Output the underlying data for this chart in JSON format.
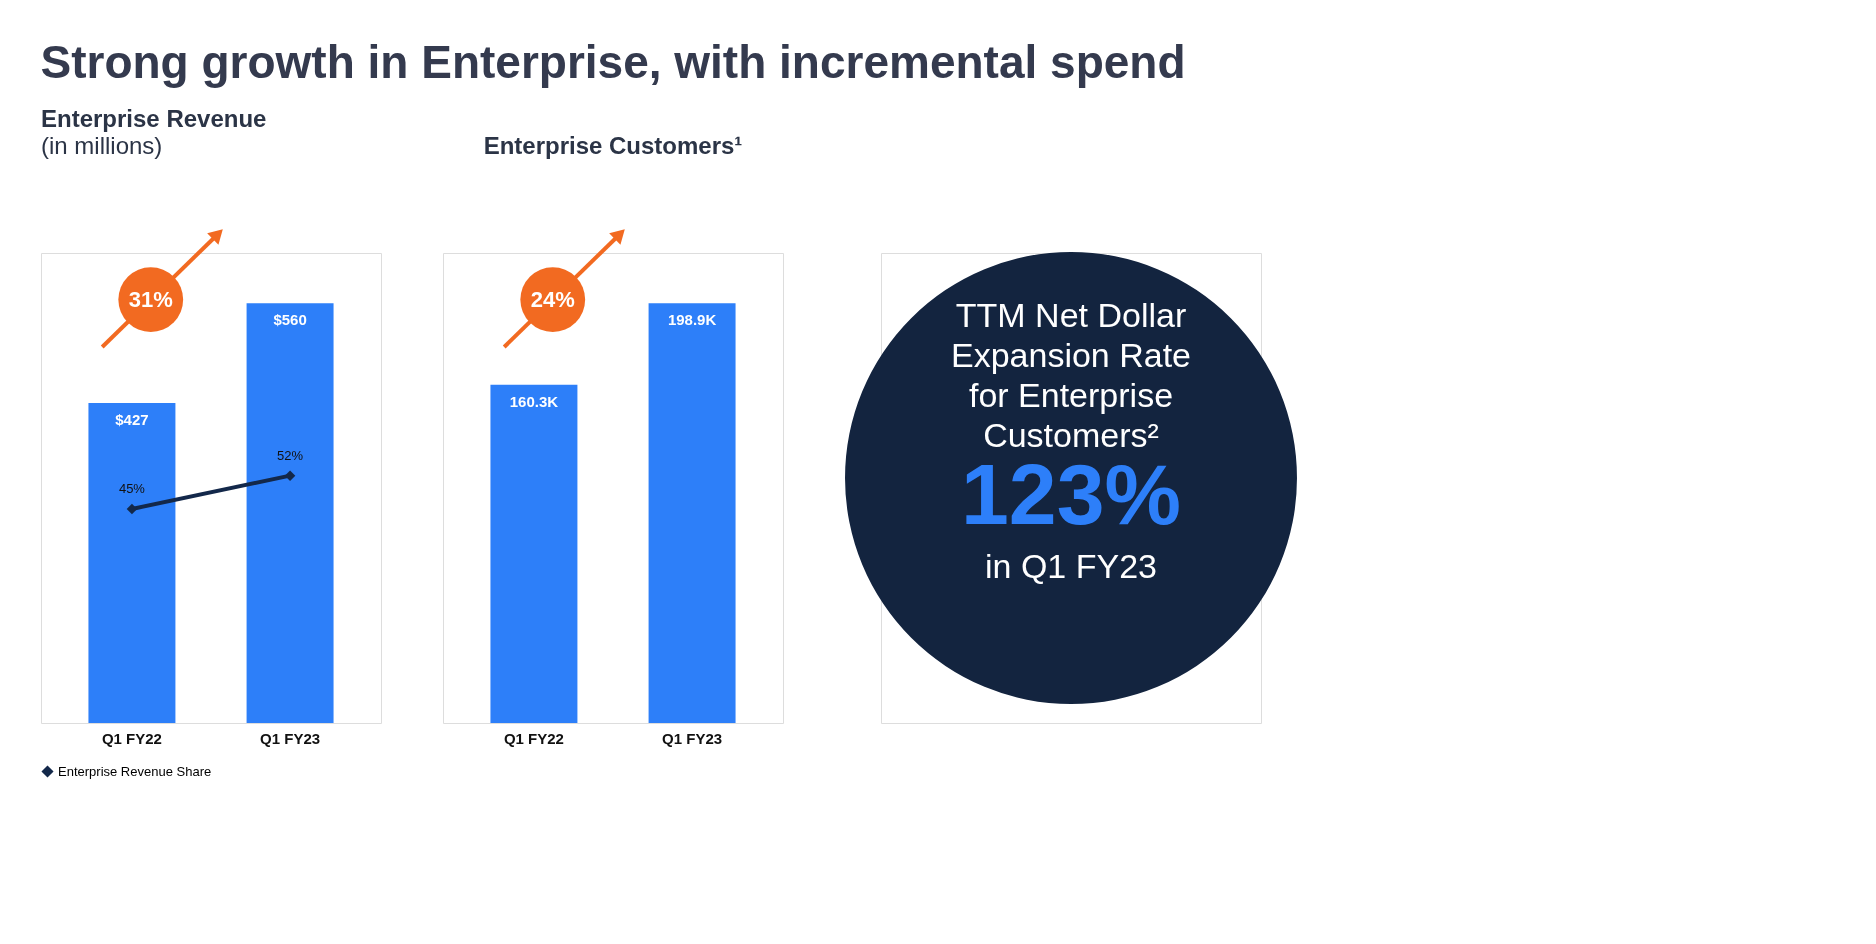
{
  "chart_data": [
    {
      "type": "bar",
      "title": "Enterprise Revenue",
      "subtitle": "(in millions)",
      "categories": [
        "Q1 FY22",
        "Q1 FY23"
      ],
      "series": [
        {
          "type": "bar",
          "color": "#2d7ff9",
          "values": [
            427,
            560
          ],
          "value_labels": [
            "$427",
            "$560"
          ]
        },
        {
          "type": "line",
          "name": "Enterprise Revenue Share",
          "color": "#13284a",
          "axis": "y2",
          "values": [
            45,
            52
          ],
          "value_labels": [
            "45%",
            "52%"
          ]
        }
      ],
      "annotations": [
        "Strong growth in Enterprise, with incremental spend",
        "31%"
      ],
      "marker": "diamond",
      "line_style": "solid",
      "legend": "bottom",
      "tick_labels": "x",
      "grid": false
    },
    {
      "type": "bar",
      "title": "Enterprise Customers¹",
      "categories": [
        "Q1 FY22",
        "Q1 FY23"
      ],
      "series": [
        {
          "type": "bar",
          "color": "#2d7ff9",
          "values": [
            160.3,
            198.9
          ],
          "value_labels": [
            "160.3K",
            "198.9K"
          ]
        }
      ],
      "annotations": [
        "24%"
      ],
      "tick_labels": "x",
      "grid": false
    },
    {
      "type": "other",
      "title": "TTM Net Dollar Expansion Rate for Enterprise Customers²",
      "annotations": [
        "123%",
        "in Q1 FY23"
      ],
      "color": "#13243f"
    }
  ]
}
